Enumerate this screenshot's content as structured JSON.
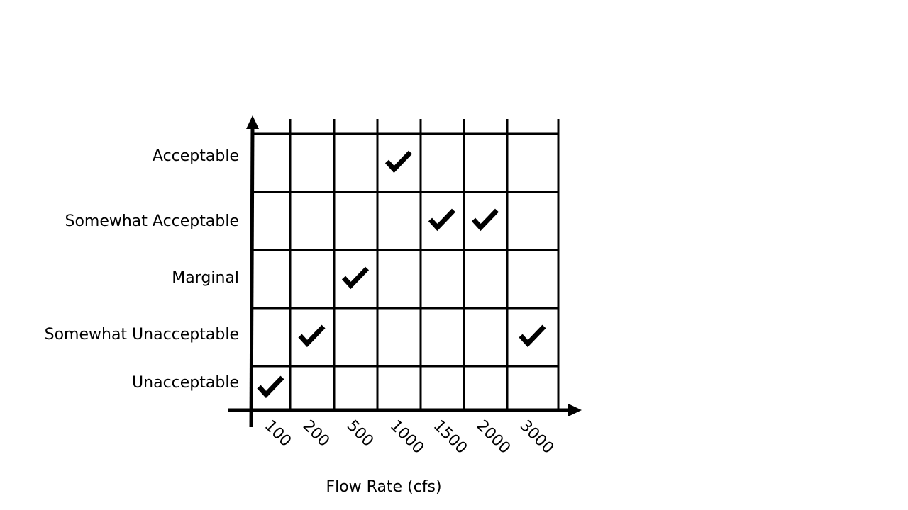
{
  "chart_data": {
    "type": "table",
    "x_axis_title": "Flow Rate (cfs)",
    "columns": [
      "100",
      "200",
      "500",
      "1000",
      "1500",
      "2000",
      "3000"
    ],
    "rows": [
      "Acceptable",
      "Somewhat Acceptable",
      "Marginal",
      "Somewhat Unacceptable",
      "Unacceptable"
    ],
    "checks": [
      {
        "column": "100",
        "row": "Unacceptable"
      },
      {
        "column": "200",
        "row": "Somewhat Unacceptable"
      },
      {
        "column": "500",
        "row": "Marginal"
      },
      {
        "column": "1000",
        "row": "Acceptable"
      },
      {
        "column": "1500",
        "row": "Somewhat Acceptable"
      },
      {
        "column": "2000",
        "row": "Somewhat Acceptable"
      },
      {
        "column": "3000",
        "row": "Somewhat Unacceptable"
      }
    ]
  }
}
